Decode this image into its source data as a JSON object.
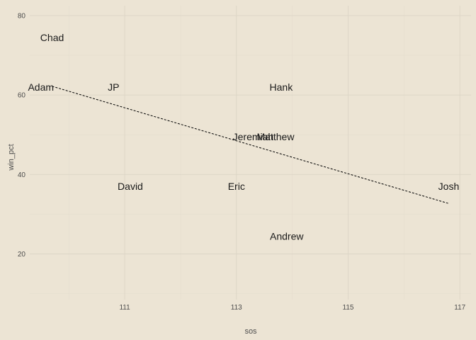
{
  "chart_data": {
    "type": "scatter",
    "xlabel": "sos",
    "ylabel": "win_pct",
    "xlim": [
      109.3,
      117.2
    ],
    "ylim": [
      8.5,
      82.5
    ],
    "x_ticks": [
      111,
      113,
      115,
      117
    ],
    "y_ticks": [
      20,
      40,
      60,
      80
    ],
    "grid": true,
    "points": [
      {
        "label": "Chad",
        "x": 109.7,
        "y": 74.5
      },
      {
        "label": "Adam",
        "x": 109.5,
        "y": 62.0
      },
      {
        "label": "JP",
        "x": 110.8,
        "y": 62.0
      },
      {
        "label": "Hank",
        "x": 113.8,
        "y": 62.0
      },
      {
        "label": "Jeremiah",
        "x": 113.3,
        "y": 49.5
      },
      {
        "label": "Matthew",
        "x": 113.7,
        "y": 49.5
      },
      {
        "label": "David",
        "x": 111.1,
        "y": 37.0
      },
      {
        "label": "Eric",
        "x": 113.0,
        "y": 37.0
      },
      {
        "label": "Josh",
        "x": 116.8,
        "y": 37.0
      },
      {
        "label": "Andrew",
        "x": 113.9,
        "y": 24.5
      }
    ],
    "trendline": {
      "x": [
        109.7,
        116.8
      ],
      "y": [
        62.2,
        32.7
      ]
    }
  }
}
